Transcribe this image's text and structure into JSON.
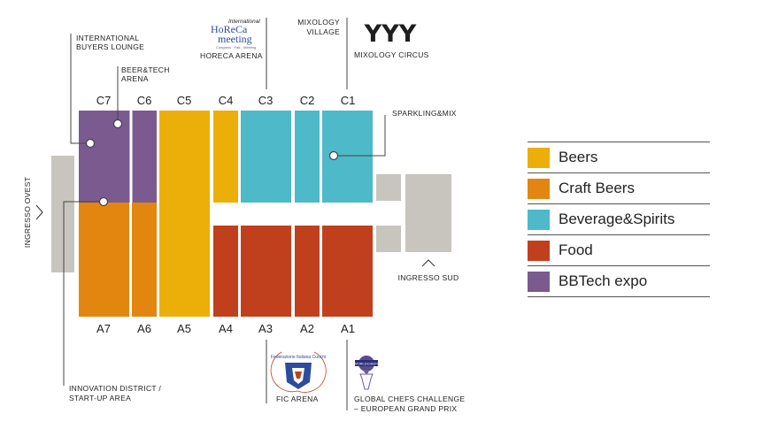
{
  "colors": {
    "beers": "#ecae09",
    "craft_beers": "#e2860f",
    "beverage_spirits": "#4db9c9",
    "food": "#c0401e",
    "bbtech": "#7b5a8f",
    "gray": "#c7c5bd",
    "line": "#444444"
  },
  "halls": {
    "c7": "C7",
    "c6": "C6",
    "c5": "C5",
    "c4": "C4",
    "c3": "C3",
    "c2": "C2",
    "c1": "C1",
    "a7": "A7",
    "a6": "A6",
    "a5": "A5",
    "a4": "A4",
    "a3": "A3",
    "a2": "A2",
    "a1": "A1"
  },
  "callouts": {
    "international_buyers_1": "INTERNATIONAL",
    "international_buyers_2": "BUYERS LOUNGE",
    "beer_tech_1": "BEER&TECH",
    "beer_tech_2": "ARENA",
    "horeca_arena": "HORECA ARENA",
    "mixology_village_1": "MIXOLOGY",
    "mixology_village_2": "VILLAGE",
    "mixology_circus": "MIXOLOGY CIRCUS",
    "sparkling_mix": "SPARKLING&MIX",
    "ingresso_ovest": "INGRESSO OVEST",
    "ingresso_sud": "INGRESSO SUD",
    "innovation_1": "INNOVATION DISTRICT /",
    "innovation_2": "START-UP AREA",
    "fic_arena": "FIC ARENA",
    "global_chefs_1": "GLOBAL CHEFS CHALLENGE",
    "global_chefs_2": "– EUROPEAN GRAND PRIX"
  },
  "logos": {
    "horeca_top": "International",
    "horeca_main_1": "HoReCa",
    "horeca_main_2": "meeting",
    "horeca_sub": "Congress · Fair · Meeting",
    "yyy": "YYY",
    "fic_ring": "Federazione Italiana Cuochi",
    "wcc_badge": "WORLDCHEFS"
  },
  "legend": [
    {
      "label": "Beers",
      "color": "#ecae09"
    },
    {
      "label": "Craft Beers",
      "color": "#e2860f"
    },
    {
      "label": "Beverage&Spirits",
      "color": "#4db9c9"
    },
    {
      "label": "Food",
      "color": "#c0401e"
    },
    {
      "label": "BBTech expo",
      "color": "#7b5a8f"
    }
  ]
}
